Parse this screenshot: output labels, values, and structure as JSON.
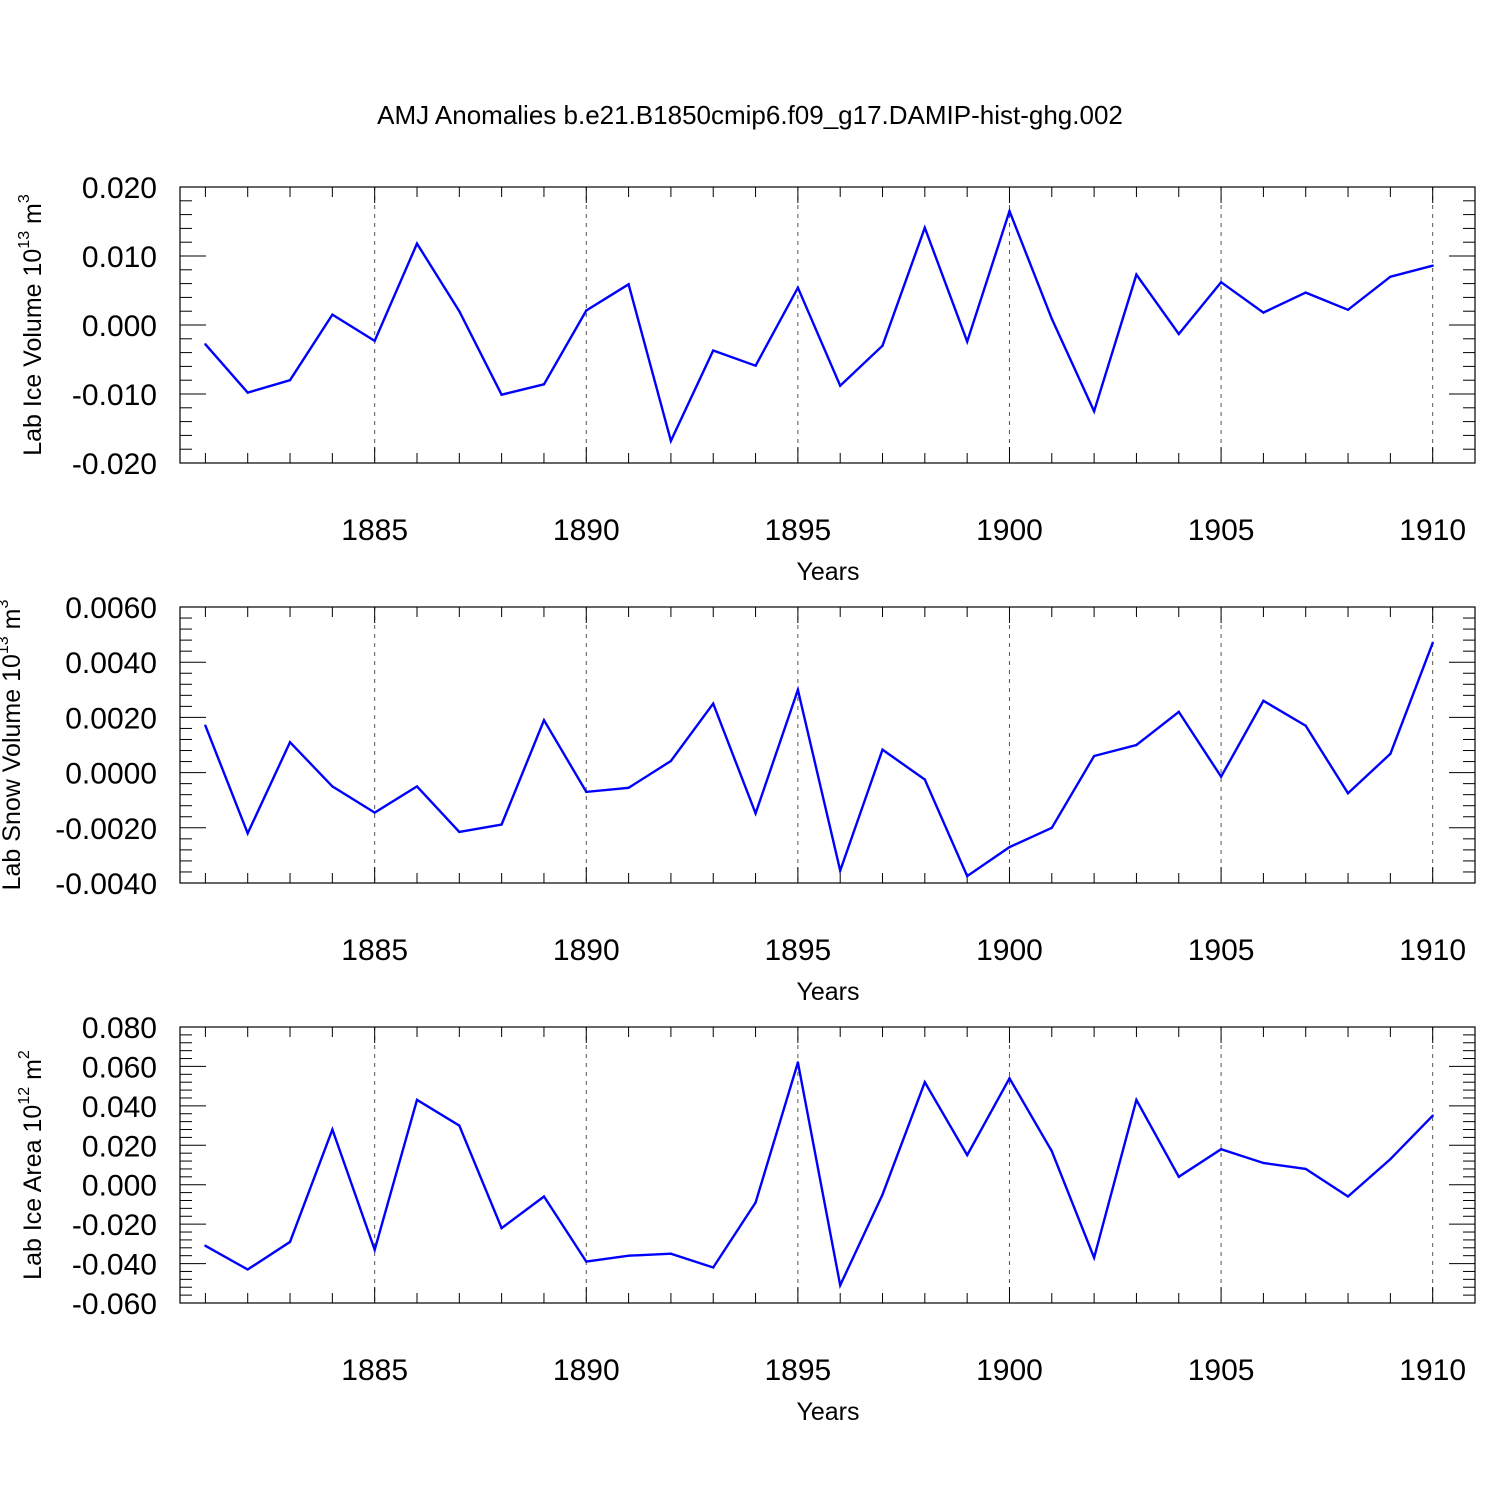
{
  "title": "AMJ Anomalies b.e21.B1850cmip6.f09_g17.DAMIP-hist-ghg.002",
  "colors": {
    "line": "#0000ff",
    "axis": "#000000",
    "grid": "#555555"
  },
  "chart_data": [
    {
      "type": "line",
      "ylabel": "Lab Ice Volume 10",
      "ylabel_exp": "13",
      "ylabel_unit": " m",
      "ylabel_unit_exp": "3",
      "xlabel": "Years",
      "xlim": [
        1880.4,
        1911.0
      ],
      "ylim": [
        -0.02,
        0.02
      ],
      "yticks": [
        -0.02,
        -0.01,
        0.0,
        0.01,
        0.02
      ],
      "ytick_labels": [
        "-0.020",
        "-0.010",
        "0.000",
        "0.010",
        "0.020"
      ],
      "xticks": [
        1885,
        1890,
        1895,
        1900,
        1905,
        1910
      ],
      "xtick_labels": [
        "1885",
        "1890",
        "1895",
        "1900",
        "1905",
        "1910"
      ],
      "x": [
        1881,
        1882,
        1883,
        1884,
        1885,
        1886,
        1887,
        1888,
        1889,
        1890,
        1891,
        1892,
        1893,
        1894,
        1895,
        1896,
        1897,
        1898,
        1899,
        1900,
        1901,
        1902,
        1903,
        1904,
        1905,
        1906,
        1907,
        1908,
        1909,
        1910
      ],
      "series": [
        {
          "name": "Lab Ice Volume",
          "values": [
            -0.0028,
            -0.0098,
            -0.008,
            0.0015,
            -0.0023,
            0.0118,
            0.002,
            -0.0101,
            -0.0086,
            0.0021,
            0.0059,
            -0.0168,
            -0.0037,
            -0.0059,
            0.0054,
            -0.0088,
            -0.003,
            0.0141,
            -0.0024,
            0.0165,
            0.0009,
            -0.0125,
            0.0073,
            -0.0013,
            0.0062,
            0.0018,
            0.0047,
            0.0022,
            0.007,
            0.0086
          ]
        }
      ]
    },
    {
      "type": "line",
      "ylabel": "Lab Snow Volume 10",
      "ylabel_exp": "13",
      "ylabel_unit": " m",
      "ylabel_unit_exp": "3",
      "xlabel": "Years",
      "xlim": [
        1880.4,
        1911.0
      ],
      "ylim": [
        -0.004,
        0.006
      ],
      "yticks": [
        -0.004,
        -0.002,
        0.0,
        0.002,
        0.004,
        0.006
      ],
      "ytick_labels": [
        "-0.0040",
        "-0.0020",
        "0.0000",
        "0.0020",
        "0.0040",
        "0.0060"
      ],
      "xticks": [
        1885,
        1890,
        1895,
        1900,
        1905,
        1910
      ],
      "xtick_labels": [
        "1885",
        "1890",
        "1895",
        "1900",
        "1905",
        "1910"
      ],
      "x": [
        1881,
        1882,
        1883,
        1884,
        1885,
        1886,
        1887,
        1888,
        1889,
        1890,
        1891,
        1892,
        1893,
        1894,
        1895,
        1896,
        1897,
        1898,
        1899,
        1900,
        1901,
        1902,
        1903,
        1904,
        1905,
        1906,
        1907,
        1908,
        1909,
        1910
      ],
      "series": [
        {
          "name": "Lab Snow Volume",
          "values": [
            0.0017,
            -0.0022,
            0.0011,
            -0.0005,
            -0.00145,
            -0.0005,
            -0.00215,
            -0.00188,
            0.0019,
            -0.0007,
            -0.00055,
            0.00042,
            0.0025,
            -0.00148,
            0.003,
            -0.00355,
            0.00083,
            -0.00025,
            -0.00375,
            -0.0027,
            -0.002,
            0.0006,
            0.001,
            0.0022,
            -0.00015,
            0.0026,
            0.0017,
            -0.00075,
            0.00068,
            0.0047
          ]
        }
      ]
    },
    {
      "type": "line",
      "ylabel": "Lab Ice Area 10",
      "ylabel_exp": "12",
      "ylabel_unit": " m",
      "ylabel_unit_exp": "2",
      "xlabel": "Years",
      "xlim": [
        1880.4,
        1911.0
      ],
      "ylim": [
        -0.06,
        0.08
      ],
      "yticks": [
        -0.06,
        -0.04,
        -0.02,
        0.0,
        0.02,
        0.04,
        0.06,
        0.08
      ],
      "ytick_labels": [
        "-0.060",
        "-0.040",
        "-0.020",
        "0.000",
        "0.020",
        "0.040",
        "0.060",
        "0.080"
      ],
      "xticks": [
        1885,
        1890,
        1895,
        1900,
        1905,
        1910
      ],
      "xtick_labels": [
        "1885",
        "1890",
        "1895",
        "1900",
        "1905",
        "1910"
      ],
      "x": [
        1881,
        1882,
        1883,
        1884,
        1885,
        1886,
        1887,
        1888,
        1889,
        1890,
        1891,
        1892,
        1893,
        1894,
        1895,
        1896,
        1897,
        1898,
        1899,
        1900,
        1901,
        1902,
        1903,
        1904,
        1905,
        1906,
        1907,
        1908,
        1909,
        1910
      ],
      "series": [
        {
          "name": "Lab Ice Area",
          "values": [
            -0.031,
            -0.043,
            -0.029,
            0.028,
            -0.033,
            0.043,
            0.03,
            -0.022,
            -0.006,
            -0.039,
            -0.036,
            -0.035,
            -0.042,
            -0.009,
            0.062,
            -0.051,
            -0.005,
            0.052,
            0.015,
            0.054,
            0.017,
            -0.037,
            0.043,
            0.004,
            0.018,
            0.011,
            0.008,
            -0.006,
            0.013,
            0.035
          ]
        }
      ]
    }
  ]
}
